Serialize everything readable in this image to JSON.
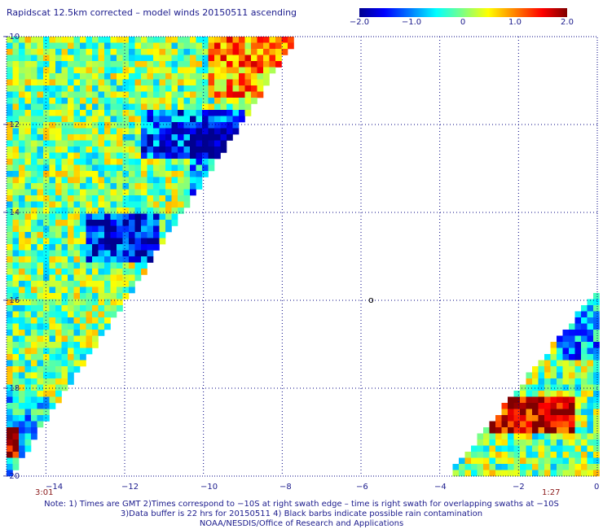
{
  "title": "Rapidscat 12.5km corrected – model winds 20150511 ascending",
  "colorbar": {
    "ticks": [
      "−2.0",
      "−1.0",
      "0",
      "1.0",
      "2.0"
    ],
    "min": -2.0,
    "max": 2.0
  },
  "axes": {
    "lon_ticks": [
      "−14",
      "−12",
      "−10",
      "−8",
      "−6",
      "−4",
      "−2",
      "0"
    ],
    "lat_ticks": [
      "−10",
      "−12",
      "−14",
      "−16",
      "−18",
      "−20"
    ],
    "lon_range": [
      -15,
      0
    ],
    "lat_range": [
      -20,
      -10
    ]
  },
  "times": {
    "left": "3:01",
    "right": "1:27"
  },
  "center_marker": "o",
  "notes": {
    "line1": "Note: 1) Times are GMT 2)Times correspond to −10S at right swath edge – time is right swath for overlapping swaths at −10S",
    "line2": "3)Data buffer is 22 hrs for 20150511 4) Black barbs indicate possible rain contamination",
    "line3": "NOAA/NESDIS/Office of Research and Applications"
  },
  "colors": {
    "text": "#1a1a8c",
    "time_text": "#8b1a1a",
    "grid": "#000080"
  }
}
